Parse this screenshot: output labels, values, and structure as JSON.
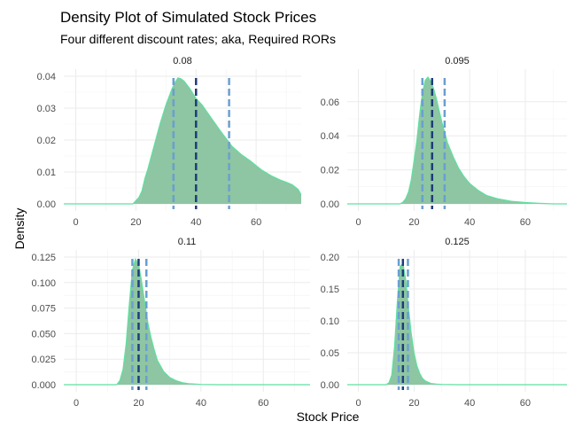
{
  "chart_data": {
    "type": "area",
    "title": "Density Plot of Simulated Stock Prices",
    "subtitle": "Four different discount rates; aka, Required RORs",
    "xlabel": "Stock Price",
    "ylabel": "Density",
    "xlim": [
      -4,
      75
    ],
    "x_ticks": [
      0,
      20,
      40,
      60
    ],
    "fill_color": "#8ec5a2",
    "outline_color": "#5fe0a0",
    "median_line_color": "#1f3d7a",
    "quantile_line_color": "#6a9fd0",
    "grid": true,
    "panels": [
      {
        "label": "0.08",
        "ylim": [
          0,
          0.04
        ],
        "y_ticks": [
          0,
          0.01,
          0.02,
          0.03,
          0.04
        ],
        "y_tick_labels": [
          "0.00",
          "0.01",
          "0.02",
          "0.03",
          "0.04"
        ],
        "median": 40,
        "quantiles": [
          32.5,
          51
        ],
        "x": [
          19,
          20,
          21,
          22,
          23,
          24,
          26,
          28,
          30,
          32,
          33,
          34,
          35,
          36,
          38,
          40,
          42,
          45,
          48,
          50,
          52,
          55,
          58,
          60,
          62,
          65,
          68,
          70,
          72,
          74,
          75.5
        ],
        "y": [
          0,
          0.001,
          0.002,
          0.004,
          0.008,
          0.011,
          0.018,
          0.025,
          0.031,
          0.036,
          0.038,
          0.0395,
          0.0392,
          0.0385,
          0.036,
          0.033,
          0.031,
          0.027,
          0.023,
          0.0205,
          0.018,
          0.0155,
          0.0135,
          0.012,
          0.0105,
          0.0088,
          0.0075,
          0.0068,
          0.006,
          0.0045,
          0.002
        ]
      },
      {
        "label": "0.095",
        "ylim": [
          0,
          0.075
        ],
        "y_ticks": [
          0,
          0.02,
          0.04,
          0.06
        ],
        "y_tick_labels": [
          "0.00",
          "0.02",
          "0.04",
          "0.06"
        ],
        "median": 26.5,
        "quantiles": [
          23,
          31
        ],
        "x": [
          15,
          16,
          17,
          18,
          19,
          20,
          21,
          22,
          23,
          24,
          25,
          26,
          27,
          28,
          29,
          30,
          31,
          32,
          34,
          36,
          38,
          40,
          43,
          46,
          50,
          55,
          60,
          65,
          70
        ],
        "y": [
          0,
          0.001,
          0.003,
          0.007,
          0.014,
          0.025,
          0.037,
          0.052,
          0.065,
          0.0725,
          0.0745,
          0.072,
          0.068,
          0.062,
          0.055,
          0.048,
          0.042,
          0.036,
          0.028,
          0.021,
          0.016,
          0.012,
          0.008,
          0.005,
          0.003,
          0.0015,
          0.0008,
          0.0003,
          0
        ]
      },
      {
        "label": "0.11",
        "ylim": [
          0,
          0.125
        ],
        "y_ticks": [
          0,
          0.025,
          0.05,
          0.075,
          0.1,
          0.125
        ],
        "y_tick_labels": [
          "0.000",
          "0.025",
          "0.050",
          "0.075",
          "0.100",
          "0.125"
        ],
        "median": 20,
        "quantiles": [
          18,
          22.5
        ],
        "x": [
          13,
          14,
          15,
          16,
          17,
          18,
          19,
          20,
          21,
          22,
          23,
          24,
          25,
          26,
          28,
          30,
          32,
          34,
          36,
          40,
          45
        ],
        "y": [
          0,
          0.004,
          0.015,
          0.04,
          0.078,
          0.112,
          0.123,
          0.118,
          0.1,
          0.08,
          0.06,
          0.046,
          0.034,
          0.024,
          0.013,
          0.007,
          0.004,
          0.002,
          0.001,
          0.0003,
          0
        ]
      },
      {
        "label": "0.125",
        "ylim": [
          0,
          0.2
        ],
        "y_ticks": [
          0,
          0.05,
          0.1,
          0.15,
          0.2
        ],
        "y_tick_labels": [
          "0.00",
          "0.05",
          "0.10",
          "0.15",
          "0.20"
        ],
        "median": 16,
        "quantiles": [
          14.5,
          17.8
        ],
        "x": [
          10,
          11,
          12,
          13,
          14,
          15,
          16,
          17,
          18,
          19,
          20,
          21,
          22,
          23,
          24,
          26,
          28,
          30,
          35
        ],
        "y": [
          0,
          0.003,
          0.015,
          0.06,
          0.13,
          0.185,
          0.19,
          0.165,
          0.12,
          0.08,
          0.05,
          0.03,
          0.018,
          0.01,
          0.006,
          0.002,
          0.001,
          0.0004,
          0
        ]
      }
    ]
  }
}
